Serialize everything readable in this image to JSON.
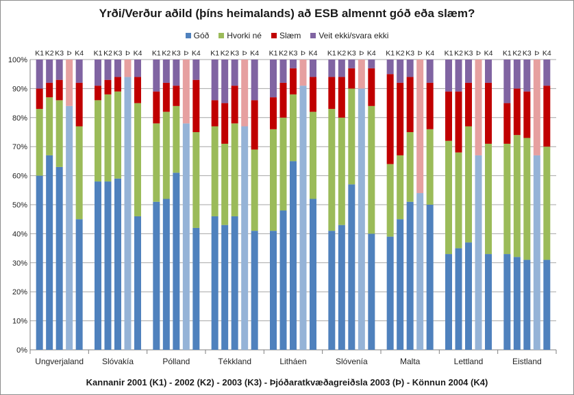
{
  "chart_data": {
    "type": "stacked-bar",
    "title": "Yrði/Verður  aðild (þíns heimalands) að ESB almennt góð eða slæm?",
    "xlabel": "Kannanir 2001 (K1) - 2002 (K2) - 2003 (K3) - Þjóðaratkvæðagreiðsla 2003 (Þ) - Könnun 2004 (K4)",
    "ylim": [
      0,
      100
    ],
    "ytick_labels": [
      "0%",
      "10%",
      "20%",
      "30%",
      "40%",
      "50%",
      "60%",
      "70%",
      "80%",
      "90%",
      "100%"
    ],
    "grid": "horizontal",
    "legend_position": "top",
    "bar_labels": [
      "K1",
      "K2",
      "K3",
      "Þ",
      "K4"
    ],
    "series": [
      {
        "name": "Góð",
        "color": "#4f81bd",
        "referendum_color": "#95b3d7"
      },
      {
        "name": "Hvorki né",
        "color": "#9bbb59",
        "referendum_color": "#c4d79b"
      },
      {
        "name": "Slæm",
        "color": "#c00000",
        "referendum_color": "#e6a0a0"
      },
      {
        "name": "Veit ekki/svara ekki",
        "color": "#8064a2",
        "referendum_color": "#b3a2c7"
      }
    ],
    "groups": [
      {
        "country": "Ungverjaland",
        "bars": [
          [
            60,
            23,
            7,
            10
          ],
          [
            67,
            20,
            5,
            8
          ],
          [
            63,
            23,
            7,
            7
          ],
          [
            84,
            0,
            16,
            0
          ],
          [
            45,
            32,
            15,
            8
          ]
        ]
      },
      {
        "country": "Slóvakía",
        "bars": [
          [
            58,
            28,
            5,
            9
          ],
          [
            58,
            30,
            5,
            7
          ],
          [
            59,
            30,
            5,
            6
          ],
          [
            94,
            0,
            6,
            0
          ],
          [
            46,
            39,
            9,
            6
          ]
        ]
      },
      {
        "country": "Pólland",
        "bars": [
          [
            51,
            27,
            11,
            11
          ],
          [
            52,
            30,
            10,
            8
          ],
          [
            61,
            23,
            7,
            9
          ],
          [
            78,
            0,
            22,
            0
          ],
          [
            42,
            33,
            18,
            7
          ]
        ]
      },
      {
        "country": "Tékkland",
        "bars": [
          [
            46,
            31,
            9,
            14
          ],
          [
            43,
            28,
            14,
            15
          ],
          [
            46,
            32,
            13,
            9
          ],
          [
            77,
            0,
            23,
            0
          ],
          [
            41,
            28,
            17,
            14
          ]
        ]
      },
      {
        "country": "Litháen",
        "bars": [
          [
            41,
            35,
            11,
            13
          ],
          [
            48,
            32,
            12,
            8
          ],
          [
            65,
            23,
            9,
            3
          ],
          [
            91,
            0,
            9,
            0
          ],
          [
            52,
            30,
            12,
            6
          ]
        ]
      },
      {
        "country": "Slóvenía",
        "bars": [
          [
            41,
            42,
            11,
            6
          ],
          [
            43,
            37,
            14,
            6
          ],
          [
            57,
            33,
            7,
            3
          ],
          [
            90,
            0,
            10,
            0
          ],
          [
            40,
            44,
            13,
            3
          ]
        ]
      },
      {
        "country": "Malta",
        "bars": [
          [
            39,
            25,
            31,
            5
          ],
          [
            45,
            22,
            25,
            8
          ],
          [
            51,
            24,
            19,
            6
          ],
          [
            54,
            0,
            46,
            0
          ],
          [
            50,
            26,
            16,
            8
          ]
        ]
      },
      {
        "country": "Lettland",
        "bars": [
          [
            33,
            39,
            17,
            11
          ],
          [
            35,
            33,
            21,
            11
          ],
          [
            37,
            40,
            15,
            8
          ],
          [
            67,
            0,
            33,
            0
          ],
          [
            33,
            38,
            21,
            8
          ]
        ]
      },
      {
        "country": "Eistland",
        "bars": [
          [
            33,
            38,
            14,
            15
          ],
          [
            32,
            42,
            16,
            10
          ],
          [
            31,
            42,
            16,
            11
          ],
          [
            67,
            0,
            33,
            0
          ],
          [
            31,
            39,
            21,
            9
          ]
        ]
      }
    ]
  }
}
